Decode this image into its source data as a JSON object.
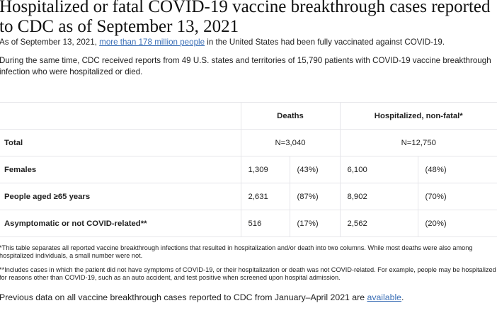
{
  "title": "Hospitalized or fatal COVID-19 vaccine breakthrough cases reported to CDC as of September 13, 2021",
  "intro": {
    "before": "As of September 13, 2021, ",
    "link": "more than 178 million people",
    "after": " in the United States had been fully vaccinated against COVID-19."
  },
  "para2": "During the same time, CDC received reports from 49 U.S. states and territories of 15,790 patients with COVID-19 vaccine breakthrough infection who were hospitalized or died.",
  "table": {
    "headers": [
      "",
      "Deaths",
      "Hospitalized, non-fatal*"
    ],
    "total": {
      "label": "Total",
      "deaths": "N=3,040",
      "hosp": "N=12,750"
    },
    "rows": [
      {
        "label": "Females",
        "d": "1,309",
        "dp": "(43%)",
        "h": "6,100",
        "hp": "(48%)"
      },
      {
        "label": "People aged ≥65 years",
        "d": "2,631",
        "dp": "(87%)",
        "h": "8,902",
        "hp": "(70%)"
      },
      {
        "label": "Asymptomatic or not COVID-related**",
        "d": "516",
        "dp": "(17%)",
        "h": "2,562",
        "hp": "(20%)"
      }
    ]
  },
  "footnotes": [
    "*This table separates all reported vaccine breakthrough infections that resulted in hospitalization and/or death into two columns.  While most deaths were also among hospitalized individuals, a small number were not.",
    "**Includes cases in which the patient did not have symptoms of COVID-19, or their hospitalization or death was not COVID-related. For example, people may be hospitalized for reasons other than COVID-19, such as an auto accident, and test positive when screened upon hospital admission."
  ],
  "previous": {
    "before": "Previous data on all vaccine breakthrough cases reported to CDC from January–April 2021 are ",
    "link": "available",
    "after": "."
  }
}
